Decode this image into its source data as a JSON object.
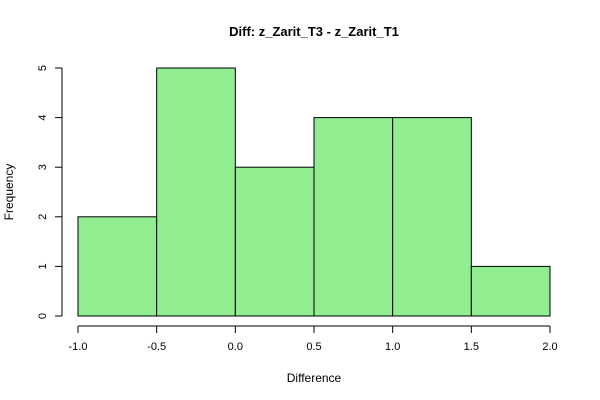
{
  "chart_data": {
    "type": "bar",
    "subtype": "histogram",
    "title": "Diff: z_Zarit_T3 - z_Zarit_T1",
    "xlabel": "Difference",
    "ylabel": "Frequency",
    "bin_edges": [
      -1.0,
      -0.5,
      0.0,
      0.5,
      1.0,
      1.5,
      2.0
    ],
    "values": [
      2,
      5,
      3,
      4,
      4,
      1
    ],
    "xlim": [
      -1.0,
      2.0
    ],
    "ylim": [
      0,
      5
    ],
    "x_ticks": [
      -1.0,
      -0.5,
      0.0,
      0.5,
      1.0,
      1.5,
      2.0
    ],
    "x_tick_labels": [
      "-1.0",
      "-0.5",
      "0.0",
      "0.5",
      "1.0",
      "1.5",
      "2.0"
    ],
    "y_ticks": [
      0,
      1,
      2,
      3,
      4,
      5
    ],
    "y_tick_labels": [
      "0",
      "1",
      "2",
      "3",
      "4",
      "5"
    ],
    "bar_color": "#90EE90",
    "edge_color": "#000000",
    "grid": false,
    "legend": "none"
  }
}
